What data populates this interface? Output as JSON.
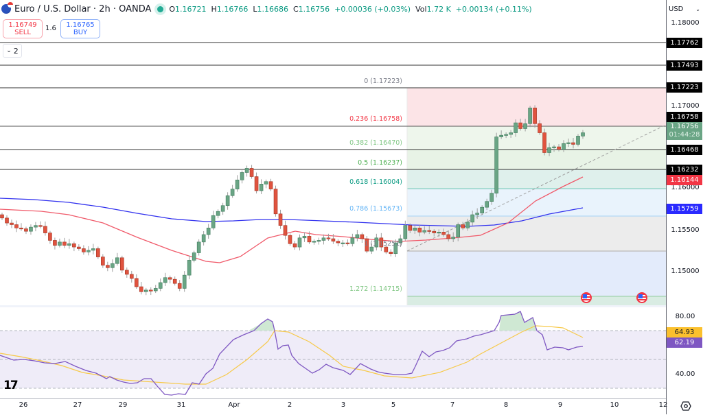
{
  "header": {
    "symbol_title": "Euro / U.S. Dollar · 2h · OANDA",
    "open_label": "O",
    "open": "1.16721",
    "high_label": "H",
    "high": "1.16766",
    "low_label": "L",
    "low": "1.16686",
    "close_label": "C",
    "close": "1.16756",
    "change": "+0.00036 (+0.03%)",
    "volume_label": "Vol",
    "volume": "1.72 K",
    "change2": "+0.00134 (+0.11%)"
  },
  "trade": {
    "sell_price": "1.16749",
    "sell_label": "SELL",
    "spread": "1.6",
    "buy_price": "1.16765",
    "buy_label": "BUY",
    "collapse_label": "2"
  },
  "price_axis": {
    "currency": "USD",
    "ticks": [
      "1.18000",
      "1.17000",
      "1.16000",
      "1.15500",
      "1.15000"
    ],
    "rsi_ticks": [
      "80.00",
      "40.00"
    ]
  },
  "price_tags": [
    {
      "value": "1.17762",
      "color": "#000000"
    },
    {
      "value": "1.17493",
      "color": "#000000"
    },
    {
      "value": "1.17223",
      "color": "#000000"
    },
    {
      "value": "1.16758",
      "color": "#000000"
    },
    {
      "value": "1.16756",
      "sub": "01:44:28",
      "color": "#6aa585"
    },
    {
      "value": "1.16468",
      "color": "#000000"
    },
    {
      "value": "1.16232",
      "color": "#000000"
    },
    {
      "value": "1.16144",
      "color": "#f23645"
    },
    {
      "value": "1.15759",
      "color": "#2a2aff"
    }
  ],
  "rsi_tags": [
    {
      "value": "64.93",
      "color": "#fbc02d"
    },
    {
      "value": "62.19",
      "color": "#7e57c2"
    }
  ],
  "time_axis": [
    "26",
    "27",
    "29",
    "31",
    "Apr",
    "2",
    "3",
    "5",
    "7",
    "8",
    "9",
    "10",
    "12"
  ],
  "fib_levels": [
    {
      "label": "0 (1.17223)",
      "color": "#787b86"
    },
    {
      "label": "0.236 (1.16758)",
      "color": "#f23645"
    },
    {
      "label": "0.382 (1.16470)",
      "color": "#81c784"
    },
    {
      "label": "0.5 (1.16237)",
      "color": "#4caf50"
    },
    {
      "label": "0.618 (1.16004)",
      "color": "#089981"
    },
    {
      "label": "0.786 (1.15673)",
      "color": "#64b5f6"
    },
    {
      "label": "1 (1.15251)",
      "color": "#787b86"
    },
    {
      "label": "1.272 (1.14715)",
      "color": "#81c784"
    }
  ],
  "chart_data": {
    "type": "candlestick",
    "title": "Euro / U.S. Dollar · 2h · OANDA",
    "xlabel": "",
    "ylabel": "USD",
    "ylim": [
      1.1465,
      1.181
    ],
    "x_ticks": [
      "26",
      "27",
      "29",
      "31",
      "Apr",
      "2",
      "3",
      "5",
      "7",
      "8",
      "9",
      "10",
      "12"
    ],
    "y_ticks": [
      1.18,
      1.17,
      1.16,
      1.155,
      1.15
    ],
    "last_price": 1.16756,
    "horizontal_lines": [
      1.17762,
      1.17493,
      1.17223,
      1.16758,
      1.16468,
      1.16232
    ],
    "moving_averages": [
      {
        "name": "MA red",
        "last": 1.16144,
        "color": "#f23645"
      },
      {
        "name": "MA blue",
        "last": 1.15759,
        "color": "#2a2aff"
      }
    ],
    "fibonacci": [
      {
        "level": 0,
        "price": 1.17223
      },
      {
        "level": 0.236,
        "price": 1.16758
      },
      {
        "level": 0.382,
        "price": 1.1647
      },
      {
        "level": 0.5,
        "price": 1.16237
      },
      {
        "level": 0.618,
        "price": 1.16004
      },
      {
        "level": 0.786,
        "price": 1.15673
      },
      {
        "level": 1,
        "price": 1.15251
      },
      {
        "level": 1.272,
        "price": 1.14715
      }
    ],
    "rsi": {
      "value": 62.19,
      "signal": 64.93,
      "ticks": [
        80,
        40
      ],
      "overbought": 70,
      "oversold": 30
    },
    "candles_close_approx": [
      1.1565,
      1.1559,
      1.1557,
      1.1553,
      1.1552,
      1.1549,
      1.1554,
      1.1556,
      1.1555,
      1.1547,
      1.1538,
      1.1532,
      1.1536,
      1.1532,
      1.1534,
      1.153,
      1.1528,
      1.1524,
      1.1526,
      1.1528,
      1.1518,
      1.1508,
      1.1505,
      1.151,
      1.1517,
      1.1502,
      1.1497,
      1.1492,
      1.1482,
      1.1476,
      1.1478,
      1.1477,
      1.148,
      1.1487,
      1.1493,
      1.1491,
      1.1486,
      1.148,
      1.1496,
      1.1514,
      1.1523,
      1.1536,
      1.1545,
      1.1553,
      1.1568,
      1.1573,
      1.158,
      1.1592,
      1.16,
      1.1611,
      1.162,
      1.1625,
      1.1615,
      1.1598,
      1.1606,
      1.1609,
      1.16,
      1.157,
      1.1556,
      1.1544,
      1.1534,
      1.153,
      1.1541,
      1.1543,
      1.1536,
      1.1537,
      1.1538,
      1.1541,
      1.154,
      1.1537,
      1.1535,
      1.1535,
      1.1534,
      1.1541,
      1.1545,
      1.154,
      1.1525,
      1.153,
      1.1541,
      1.153,
      1.1524,
      1.1522,
      1.1535,
      1.154,
      1.1556,
      1.155,
      1.1553,
      1.1548,
      1.155,
      1.1549,
      1.1547,
      1.1548,
      1.1545,
      1.154,
      1.1542,
      1.1557,
      1.1553,
      1.156,
      1.1569,
      1.1571,
      1.1578,
      1.1585,
      1.1595,
      1.1663,
      1.1665,
      1.1666,
      1.1668,
      1.168,
      1.1673,
      1.1679,
      1.1698,
      1.1679,
      1.1668,
      1.1644,
      1.165,
      1.1651,
      1.1648,
      1.1655,
      1.1656,
      1.1654,
      1.1664,
      1.1668
    ]
  }
}
